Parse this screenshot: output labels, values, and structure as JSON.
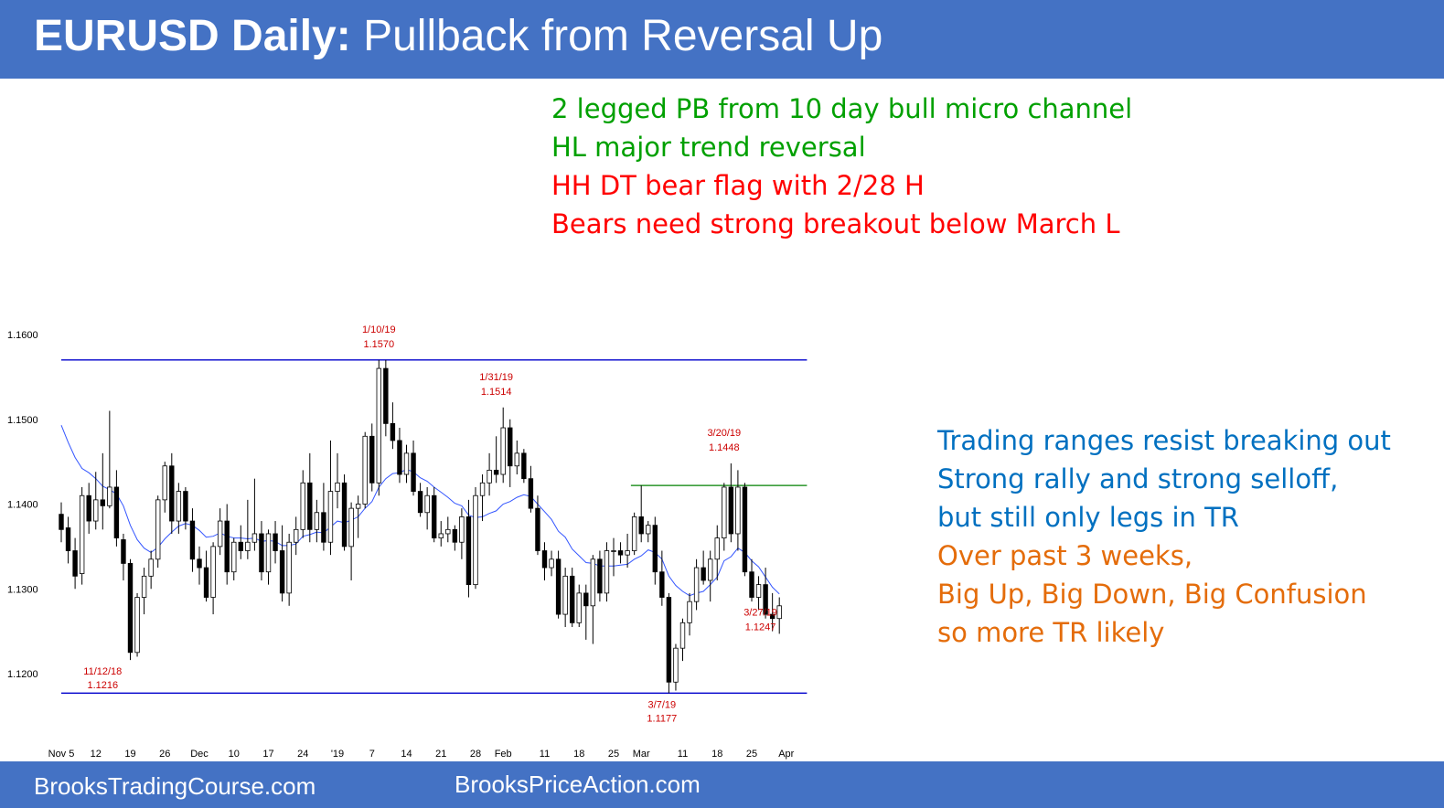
{
  "header": {
    "title_bold": "EURUSD Daily:",
    "title_rest": " Pullback from Reversal Up"
  },
  "footer": {
    "left": "BrooksTradingCourse.com",
    "right": "BrooksPriceAction.com"
  },
  "notes_top": [
    {
      "text": "2 legged PB from 10 day bull micro channel",
      "color": "#00a000"
    },
    {
      "text": "HL major trend reversal",
      "color": "#00a000"
    },
    {
      "text": "HH DT bear flag with 2/28 H",
      "color": "#ff0000"
    },
    {
      "text": "Bears need strong breakout below March L",
      "color": "#ff0000"
    }
  ],
  "notes_right": [
    {
      "text": "Trading ranges resist breaking out",
      "color": "#0070c0"
    },
    {
      "text": "Strong rally and strong selloff,",
      "color": "#0070c0"
    },
    {
      "text": "but still only legs in TR",
      "color": "#0070c0"
    },
    {
      "text": "Over past 3 weeks,",
      "color": "#e46c0a"
    },
    {
      "text": "Big Up, Big Down, Big Confusion",
      "color": "#e46c0a"
    },
    {
      "text": "so more TR likely",
      "color": "#e46c0a"
    }
  ],
  "chart_data": {
    "type": "candlestick",
    "ylim": [
      1.115,
      1.162
    ],
    "y_ticks": [
      {
        "value": 1.16,
        "label": "1.1600"
      },
      {
        "value": 1.15,
        "label": "1.1500"
      },
      {
        "value": 1.14,
        "label": "1.1400"
      },
      {
        "value": 1.13,
        "label": "1.1300"
      },
      {
        "value": 1.12,
        "label": "1.1200"
      }
    ],
    "x_ticks": [
      {
        "i": 0,
        "label": "Nov 5"
      },
      {
        "i": 5,
        "label": "12"
      },
      {
        "i": 10,
        "label": "19"
      },
      {
        "i": 15,
        "label": "26"
      },
      {
        "i": 20,
        "label": "Dec"
      },
      {
        "i": 25,
        "label": "10"
      },
      {
        "i": 30,
        "label": "17"
      },
      {
        "i": 35,
        "label": "24"
      },
      {
        "i": 40,
        "label": "'19"
      },
      {
        "i": 45,
        "label": "7"
      },
      {
        "i": 50,
        "label": "14"
      },
      {
        "i": 55,
        "label": "21"
      },
      {
        "i": 60,
        "label": "28"
      },
      {
        "i": 64,
        "label": "Feb"
      },
      {
        "i": 70,
        "label": "11"
      },
      {
        "i": 75,
        "label": "18"
      },
      {
        "i": 80,
        "label": "25"
      },
      {
        "i": 84,
        "label": "Mar"
      },
      {
        "i": 90,
        "label": "11"
      },
      {
        "i": 95,
        "label": "18"
      },
      {
        "i": 100,
        "label": "25"
      },
      {
        "i": 105,
        "label": "Apr"
      }
    ],
    "h_lines": [
      {
        "value": 1.157,
        "color": "#0000cc",
        "i_start": 0,
        "i_end": 108
      },
      {
        "value": 1.1177,
        "color": "#0000cc",
        "i_start": 0,
        "i_end": 108
      },
      {
        "value": 1.1422,
        "color": "#008000",
        "i_start": 82.5,
        "i_end": 108
      }
    ],
    "annotations": [
      {
        "i": 6,
        "value": 1.1216,
        "date": "11/12/18",
        "price": "1.1216",
        "pos": "below"
      },
      {
        "i": 46,
        "value": 1.157,
        "date": "1/10/19",
        "price": "1.1570",
        "pos": "above"
      },
      {
        "i": 63,
        "value": 1.1514,
        "date": "1/31/19",
        "price": "1.1514",
        "pos": "above"
      },
      {
        "i": 87,
        "value": 1.1177,
        "date": "3/7/19",
        "price": "1.1177",
        "pos": "below"
      },
      {
        "i": 96,
        "value": 1.1448,
        "date": "3/20/19",
        "price": "1.1448",
        "pos": "above"
      },
      {
        "i": 101,
        "value": 1.1247,
        "date": "3/27/19",
        "price": "1.1247",
        "pos": "right"
      }
    ],
    "ohlc": [
      [
        1.1388,
        1.1402,
        1.1355,
        1.137
      ],
      [
        1.1372,
        1.1385,
        1.133,
        1.1345
      ],
      [
        1.1345,
        1.136,
        1.13,
        1.1315
      ],
      [
        1.1318,
        1.142,
        1.1305,
        1.141
      ],
      [
        1.141,
        1.1425,
        1.1365,
        1.138
      ],
      [
        1.138,
        1.1438,
        1.137,
        1.1405
      ],
      [
        1.1405,
        1.146,
        1.137,
        1.1398
      ],
      [
        1.1398,
        1.151,
        1.1395,
        1.142
      ],
      [
        1.142,
        1.144,
        1.135,
        1.136
      ],
      [
        1.1358,
        1.1365,
        1.131,
        1.133
      ],
      [
        1.133,
        1.1335,
        1.1216,
        1.1225
      ],
      [
        1.1225,
        1.1295,
        1.122,
        1.129
      ],
      [
        1.129,
        1.1325,
        1.127,
        1.1315
      ],
      [
        1.1315,
        1.1345,
        1.13,
        1.1335
      ],
      [
        1.1335,
        1.141,
        1.1325,
        1.1405
      ],
      [
        1.1405,
        1.145,
        1.139,
        1.1445
      ],
      [
        1.1445,
        1.146,
        1.1365,
        1.138
      ],
      [
        1.138,
        1.1425,
        1.1365,
        1.1415
      ],
      [
        1.1415,
        1.142,
        1.137,
        1.138
      ],
      [
        1.138,
        1.1395,
        1.132,
        1.1335
      ],
      [
        1.1335,
        1.135,
        1.1305,
        1.1325
      ],
      [
        1.1325,
        1.1345,
        1.1285,
        1.129
      ],
      [
        1.129,
        1.1355,
        1.127,
        1.135
      ],
      [
        1.135,
        1.1395,
        1.134,
        1.138
      ],
      [
        1.138,
        1.14,
        1.1305,
        1.132
      ],
      [
        1.132,
        1.136,
        1.131,
        1.1355
      ],
      [
        1.1355,
        1.1375,
        1.1335,
        1.1345
      ],
      [
        1.1345,
        1.1405,
        1.1335,
        1.1355
      ],
      [
        1.1355,
        1.143,
        1.1345,
        1.1365
      ],
      [
        1.1365,
        1.138,
        1.131,
        1.132
      ],
      [
        1.132,
        1.137,
        1.1305,
        1.1365
      ],
      [
        1.1365,
        1.138,
        1.133,
        1.1345
      ],
      [
        1.1345,
        1.1375,
        1.1285,
        1.1295
      ],
      [
        1.1295,
        1.1365,
        1.128,
        1.1355
      ],
      [
        1.1355,
        1.1385,
        1.134,
        1.137
      ],
      [
        1.137,
        1.144,
        1.136,
        1.1425
      ],
      [
        1.1425,
        1.146,
        1.1355,
        1.137
      ],
      [
        1.137,
        1.1405,
        1.1355,
        1.139
      ],
      [
        1.139,
        1.1425,
        1.1345,
        1.1355
      ],
      [
        1.1355,
        1.1475,
        1.134,
        1.1415
      ],
      [
        1.1415,
        1.146,
        1.1395,
        1.1425
      ],
      [
        1.1425,
        1.1435,
        1.1345,
        1.135
      ],
      [
        1.135,
        1.1402,
        1.131,
        1.1395
      ],
      [
        1.1395,
        1.141,
        1.136,
        1.14
      ],
      [
        1.14,
        1.1485,
        1.1395,
        1.148
      ],
      [
        1.148,
        1.1495,
        1.1415,
        1.1425
      ],
      [
        1.1425,
        1.157,
        1.141,
        1.156
      ],
      [
        1.156,
        1.157,
        1.148,
        1.1495
      ],
      [
        1.1495,
        1.152,
        1.1465,
        1.1475
      ],
      [
        1.1475,
        1.149,
        1.1425,
        1.1435
      ],
      [
        1.1435,
        1.147,
        1.1425,
        1.146
      ],
      [
        1.146,
        1.1475,
        1.141,
        1.1415
      ],
      [
        1.1415,
        1.1425,
        1.1385,
        1.139
      ],
      [
        1.139,
        1.142,
        1.137,
        1.141
      ],
      [
        1.141,
        1.142,
        1.1355,
        1.136
      ],
      [
        1.136,
        1.138,
        1.135,
        1.1365
      ],
      [
        1.1365,
        1.1385,
        1.1355,
        1.137
      ],
      [
        1.137,
        1.1375,
        1.1345,
        1.1355
      ],
      [
        1.1355,
        1.1395,
        1.1335,
        1.1385
      ],
      [
        1.1385,
        1.1405,
        1.129,
        1.1305
      ],
      [
        1.1305,
        1.142,
        1.13,
        1.141
      ],
      [
        1.141,
        1.1435,
        1.138,
        1.1425
      ],
      [
        1.1425,
        1.146,
        1.141,
        1.144
      ],
      [
        1.144,
        1.148,
        1.1425,
        1.1435
      ],
      [
        1.1435,
        1.1514,
        1.1425,
        1.149
      ],
      [
        1.149,
        1.15,
        1.142,
        1.1445
      ],
      [
        1.1445,
        1.1475,
        1.1435,
        1.146
      ],
      [
        1.146,
        1.1465,
        1.1425,
        1.143
      ],
      [
        1.143,
        1.1445,
        1.139,
        1.1395
      ],
      [
        1.1395,
        1.141,
        1.134,
        1.1345
      ],
      [
        1.1345,
        1.1355,
        1.131,
        1.1325
      ],
      [
        1.1325,
        1.1345,
        1.1315,
        1.1335
      ],
      [
        1.1335,
        1.1345,
        1.1265,
        1.127
      ],
      [
        1.127,
        1.1325,
        1.1255,
        1.1315
      ],
      [
        1.1315,
        1.1325,
        1.1255,
        1.126
      ],
      [
        1.126,
        1.1305,
        1.1255,
        1.1295
      ],
      [
        1.1295,
        1.1305,
        1.124,
        1.128
      ],
      [
        1.128,
        1.134,
        1.1235,
        1.1335
      ],
      [
        1.1335,
        1.1345,
        1.1285,
        1.1295
      ],
      [
        1.1295,
        1.1355,
        1.1285,
        1.1345
      ],
      [
        1.1345,
        1.136,
        1.1315,
        1.1345
      ],
      [
        1.1345,
        1.1355,
        1.133,
        1.134
      ],
      [
        1.134,
        1.1365,
        1.1325,
        1.1345
      ],
      [
        1.1345,
        1.139,
        1.134,
        1.1385
      ],
      [
        1.1385,
        1.1422,
        1.1355,
        1.1365
      ],
      [
        1.1365,
        1.138,
        1.1355,
        1.1375
      ],
      [
        1.1375,
        1.1385,
        1.1305,
        1.132
      ],
      [
        1.132,
        1.1345,
        1.128,
        1.129
      ],
      [
        1.129,
        1.1295,
        1.1177,
        1.119
      ],
      [
        1.119,
        1.1235,
        1.118,
        1.123
      ],
      [
        1.123,
        1.1265,
        1.1215,
        1.126
      ],
      [
        1.126,
        1.1295,
        1.1245,
        1.1285
      ],
      [
        1.1285,
        1.1335,
        1.1275,
        1.1325
      ],
      [
        1.1325,
        1.1345,
        1.1305,
        1.131
      ],
      [
        1.131,
        1.1345,
        1.1285,
        1.1335
      ],
      [
        1.1335,
        1.1375,
        1.131,
        1.136
      ],
      [
        1.136,
        1.1425,
        1.1345,
        1.142
      ],
      [
        1.142,
        1.1448,
        1.1355,
        1.1365
      ],
      [
        1.1365,
        1.144,
        1.1345,
        1.142
      ],
      [
        1.142,
        1.1425,
        1.1315,
        1.132
      ],
      [
        1.132,
        1.1335,
        1.1285,
        1.129
      ],
      [
        1.129,
        1.1315,
        1.1275,
        1.1305
      ],
      [
        1.1305,
        1.1325,
        1.1265,
        1.127
      ],
      [
        1.127,
        1.1295,
        1.125,
        1.1265
      ],
      [
        1.1265,
        1.129,
        1.1247,
        1.128
      ]
    ],
    "ma": [
      1.1493,
      1.1473,
      1.1455,
      1.1442,
      1.1437,
      1.143,
      1.1421,
      1.1417,
      1.1412,
      1.1398,
      1.1375,
      1.1358,
      1.1348,
      1.1343,
      1.1349,
      1.1359,
      1.1367,
      1.1374,
      1.1377,
      1.1375,
      1.1369,
      1.1361,
      1.1362,
      1.1366,
      1.1362,
      1.136,
      1.136,
      1.1359,
      1.136,
      1.1356,
      1.1357,
      1.1356,
      1.1351,
      1.1351,
      1.1353,
      1.1362,
      1.1364,
      1.1367,
      1.1366,
      1.1373,
      1.138,
      1.1378,
      1.1381,
      1.1385,
      1.1395,
      1.1403,
      1.142,
      1.143,
      1.1436,
      1.1437,
      1.1441,
      1.1438,
      1.1431,
      1.1427,
      1.142,
      1.1414,
      1.1408,
      1.1401,
      1.1398,
      1.1387,
      1.1384,
      1.1385,
      1.1389,
      1.1392,
      1.14,
      1.1403,
      1.1408,
      1.1411,
      1.1409,
      1.14,
      1.1391,
      1.1382,
      1.1368,
      1.1361,
      1.1347,
      1.1339,
      1.1331,
      1.133,
      1.1327,
      1.1327,
      1.1327,
      1.1328,
      1.1329,
      1.1335,
      1.1339,
      1.1346,
      1.1343,
      1.1335,
      1.1315,
      1.1304,
      1.1297,
      1.1292,
      1.1295,
      1.1297,
      1.1305,
      1.1314,
      1.1333,
      1.1338,
      1.1348,
      1.1343,
      1.1333,
      1.1326,
      1.1314,
      1.1302,
      1.1294
    ]
  }
}
